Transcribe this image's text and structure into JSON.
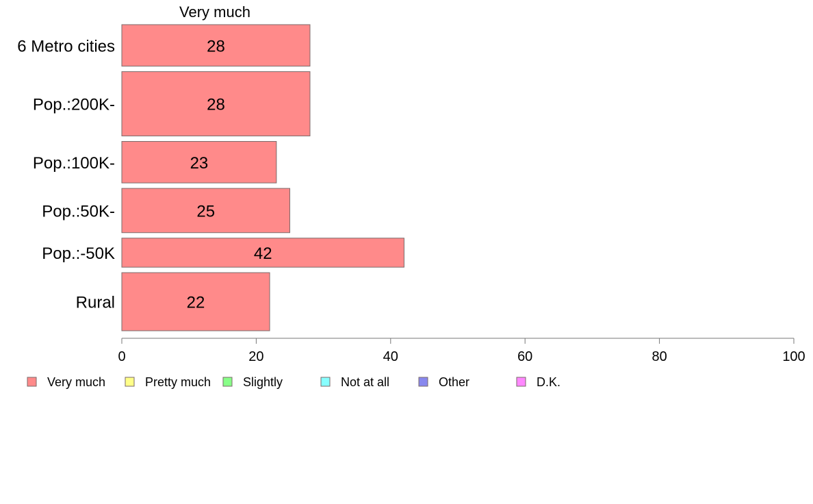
{
  "chart_data": {
    "type": "bar",
    "orientation": "horizontal",
    "stacked": true,
    "title": "Very much",
    "xlim": [
      0,
      100
    ],
    "xticks": [
      "0",
      "20",
      "40",
      "60",
      "80",
      "100"
    ],
    "categories": [
      "6 Metro cities",
      "Pop.:200K-",
      "Pop.:100K-",
      "Pop.:50K-",
      "Pop.:-50K",
      "Rural"
    ],
    "category_weights": [
      60,
      93,
      60,
      64,
      42,
      84
    ],
    "series": [
      {
        "name": "Very much",
        "color": "#ff8a8a",
        "values": [
          28,
          28,
          23,
          25,
          42,
          22
        ],
        "labels": [
          "28",
          "28",
          "23",
          "25",
          "42",
          "22"
        ]
      }
    ],
    "legend": {
      "placement": "bottom",
      "items": [
        {
          "label": "Very much",
          "color": "#ff8a8a"
        },
        {
          "label": "Pretty much",
          "color": "#ffff88"
        },
        {
          "label": "Slightly",
          "color": "#88ff88"
        },
        {
          "label": "Not at all",
          "color": "#88ffff"
        },
        {
          "label": "Other",
          "color": "#8888ee"
        },
        {
          "label": "D.K.",
          "color": "#ff88ff"
        }
      ]
    },
    "grid": false
  }
}
